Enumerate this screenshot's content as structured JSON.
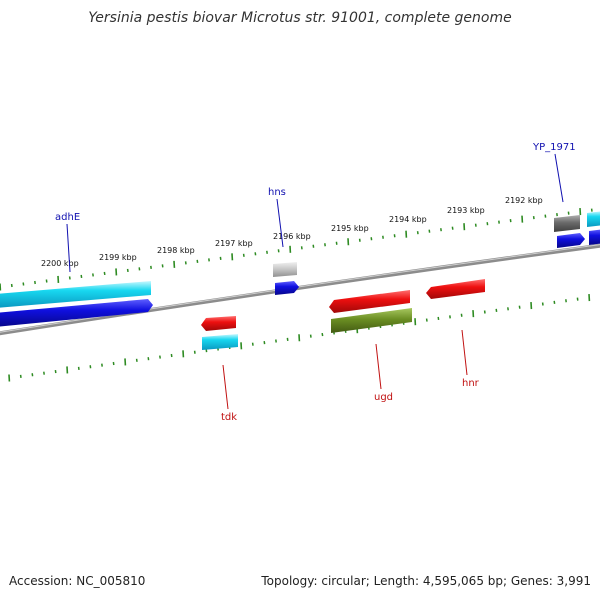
{
  "header": {
    "title": "Yersinia pestis biovar Microtus str. 91001, complete genome"
  },
  "footer": {
    "accession": "Accession: NC_005810",
    "topology": "Topology: circular; Length: 4,595,065 bp; Genes: 3,991"
  },
  "colors": {
    "backbone": "#7a7a7a",
    "tick": "#2e8b22",
    "tick_label": "#111111",
    "gene_label_forward": "#1010b0",
    "gene_label_reverse": "#c01010",
    "cyan": "#18c8e8",
    "blue": "#1010e0",
    "red": "#e81010",
    "olive": "#6b8e23",
    "gray_light": "#b8b8b8",
    "gray_dark": "#6a6a6a"
  },
  "scale": {
    "labels": [
      "2200 kbp",
      "2199 kbp",
      "2198 kbp",
      "2197 kbp",
      "2196 kbp",
      "2195 kbp",
      "2194 kbp",
      "2193 kbp",
      "2192 kbp"
    ]
  },
  "genes": {
    "upper": [
      {
        "label": "adhE",
        "color": "blue"
      },
      {
        "label": "hns",
        "color": "blue"
      },
      {
        "label": "YP_1971",
        "color": "blue"
      }
    ],
    "lower": [
      {
        "label": "tdk",
        "color": "red"
      },
      {
        "label": "ugd",
        "color": "red"
      },
      {
        "label": "hnr",
        "color": "red"
      }
    ]
  }
}
